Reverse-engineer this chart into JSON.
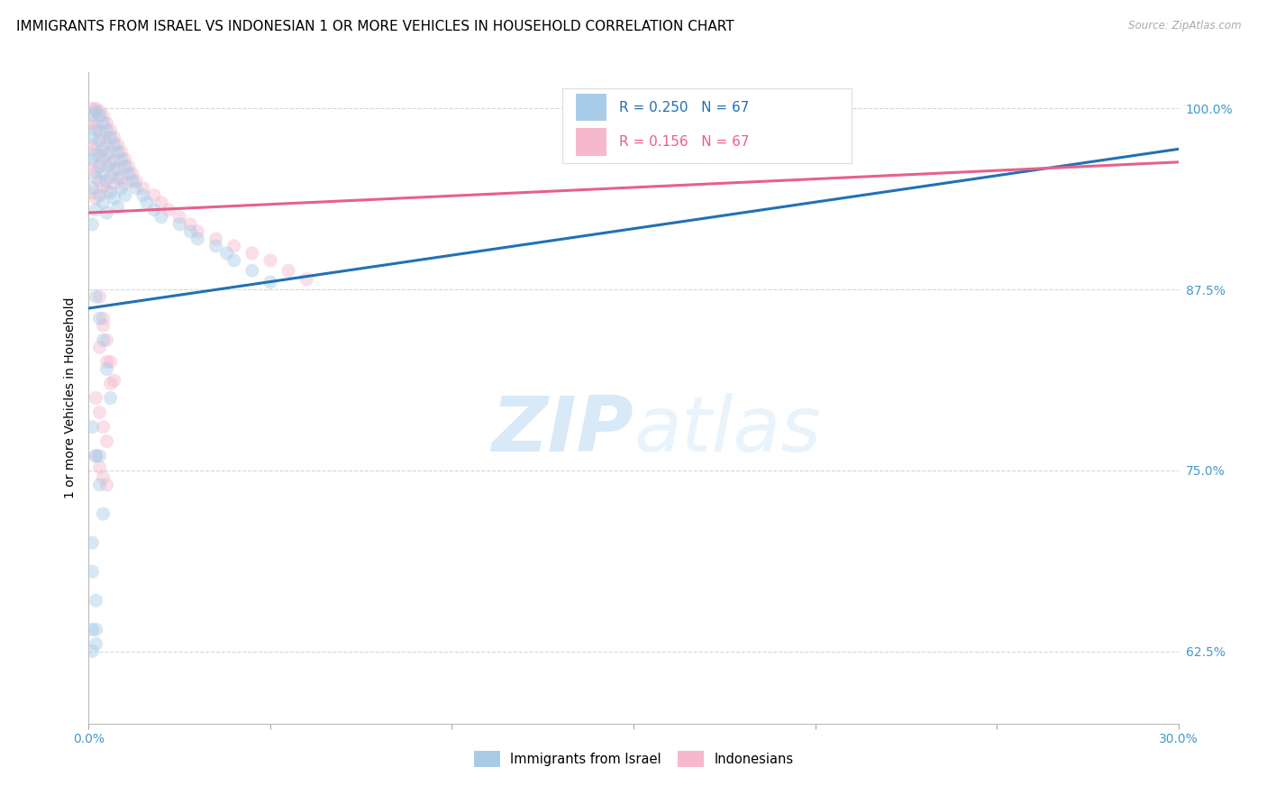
{
  "title": "IMMIGRANTS FROM ISRAEL VS INDONESIAN 1 OR MORE VEHICLES IN HOUSEHOLD CORRELATION CHART",
  "source": "Source: ZipAtlas.com",
  "ylabel": "1 or more Vehicles in Household",
  "legend_blue_label": "Immigrants from Israel",
  "legend_pink_label": "Indonesians",
  "legend_blue_text": "R = 0.250   N = 67",
  "legend_pink_text": "R = 0.156   N = 67",
  "blue_scatter_color": "#a8cce8",
  "pink_scatter_color": "#f5b8cc",
  "blue_line_color": "#2171b5",
  "pink_line_color": "#e8608a",
  "right_axis_color": "#4499cc",
  "grid_color": "#cccccc",
  "background_color": "#ffffff",
  "title_fontsize": 11,
  "axis_label_fontsize": 10,
  "tick_fontsize": 10,
  "scatter_size": 120,
  "scatter_alpha": 0.45,
  "xlim_min": 0.0,
  "xlim_max": 0.3,
  "ylim_min": 0.575,
  "ylim_max": 1.025,
  "y_ticks": [
    0.625,
    0.75,
    0.875,
    1.0
  ],
  "y_tick_labels": [
    "62.5%",
    "75.0%",
    "87.5%",
    "100.0%"
  ],
  "blue_line_x": [
    0.0,
    0.3
  ],
  "blue_line_y": [
    0.862,
    0.972
  ],
  "pink_line_x": [
    0.0,
    0.3
  ],
  "pink_line_y": [
    0.928,
    0.963
  ],
  "israel_x": [
    0.001,
    0.001,
    0.001,
    0.001,
    0.001,
    0.002,
    0.002,
    0.002,
    0.002,
    0.002,
    0.003,
    0.003,
    0.003,
    0.003,
    0.004,
    0.004,
    0.004,
    0.004,
    0.005,
    0.005,
    0.005,
    0.005,
    0.006,
    0.006,
    0.006,
    0.007,
    0.007,
    0.007,
    0.008,
    0.008,
    0.008,
    0.009,
    0.009,
    0.01,
    0.01,
    0.011,
    0.012,
    0.013,
    0.015,
    0.016,
    0.018,
    0.02,
    0.025,
    0.028,
    0.03,
    0.035,
    0.038,
    0.04,
    0.045,
    0.05,
    0.002,
    0.003,
    0.004,
    0.005,
    0.006,
    0.001,
    0.002,
    0.003,
    0.004,
    0.001,
    0.001,
    0.002,
    0.001,
    0.003,
    0.002,
    0.001,
    0.002
  ],
  "israel_y": [
    0.995,
    0.98,
    0.965,
    0.945,
    0.92,
    0.998,
    0.985,
    0.968,
    0.952,
    0.93,
    0.995,
    0.978,
    0.96,
    0.94,
    0.99,
    0.972,
    0.955,
    0.935,
    0.985,
    0.968,
    0.95,
    0.928,
    0.98,
    0.962,
    0.942,
    0.975,
    0.958,
    0.938,
    0.97,
    0.952,
    0.932,
    0.965,
    0.945,
    0.96,
    0.94,
    0.955,
    0.95,
    0.945,
    0.94,
    0.935,
    0.93,
    0.925,
    0.92,
    0.915,
    0.91,
    0.905,
    0.9,
    0.895,
    0.888,
    0.88,
    0.87,
    0.855,
    0.84,
    0.82,
    0.8,
    0.78,
    0.76,
    0.74,
    0.72,
    0.7,
    0.68,
    0.66,
    0.64,
    0.76,
    0.64,
    0.625,
    0.63
  ],
  "indonesian_x": [
    0.001,
    0.001,
    0.001,
    0.001,
    0.001,
    0.002,
    0.002,
    0.002,
    0.002,
    0.002,
    0.003,
    0.003,
    0.003,
    0.003,
    0.004,
    0.004,
    0.004,
    0.004,
    0.005,
    0.005,
    0.005,
    0.005,
    0.006,
    0.006,
    0.006,
    0.007,
    0.007,
    0.007,
    0.008,
    0.008,
    0.009,
    0.009,
    0.01,
    0.01,
    0.011,
    0.012,
    0.013,
    0.015,
    0.018,
    0.02,
    0.022,
    0.025,
    0.028,
    0.03,
    0.035,
    0.04,
    0.045,
    0.05,
    0.055,
    0.06,
    0.003,
    0.004,
    0.005,
    0.006,
    0.007,
    0.002,
    0.003,
    0.004,
    0.005,
    0.002,
    0.003,
    0.004,
    0.005,
    0.006,
    0.003,
    0.004,
    0.005
  ],
  "indonesian_y": [
    1.0,
    0.99,
    0.975,
    0.96,
    0.942,
    1.0,
    0.988,
    0.972,
    0.956,
    0.938,
    0.998,
    0.984,
    0.968,
    0.95,
    0.995,
    0.98,
    0.964,
    0.946,
    0.99,
    0.976,
    0.96,
    0.943,
    0.985,
    0.97,
    0.953,
    0.98,
    0.964,
    0.948,
    0.975,
    0.958,
    0.97,
    0.952,
    0.965,
    0.948,
    0.96,
    0.955,
    0.95,
    0.945,
    0.94,
    0.935,
    0.93,
    0.925,
    0.92,
    0.915,
    0.91,
    0.905,
    0.9,
    0.895,
    0.888,
    0.882,
    0.87,
    0.855,
    0.84,
    0.825,
    0.812,
    0.8,
    0.79,
    0.78,
    0.77,
    0.76,
    0.752,
    0.745,
    0.74,
    0.81,
    0.835,
    0.85,
    0.825
  ]
}
